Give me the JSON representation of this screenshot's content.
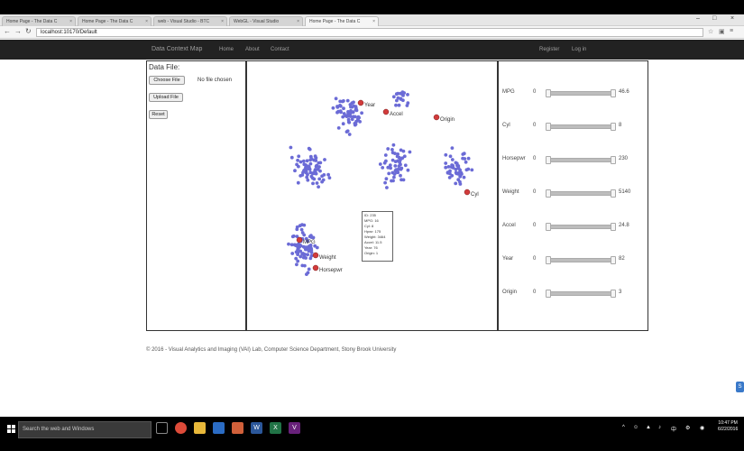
{
  "browser": {
    "tabs": [
      {
        "label": "Home Page - The Data C"
      },
      {
        "label": "Home Page - The Data C"
      },
      {
        "label": "web - Visual Studio - BTC"
      },
      {
        "label": "WebGL - Visual Studio"
      },
      {
        "label": "Home Page - The Data C"
      }
    ],
    "url": "localhost:10170/Default"
  },
  "app": {
    "brand": "Data Context Map",
    "nav_left": [
      "Home",
      "About",
      "Contact"
    ],
    "nav_right": [
      "Register",
      "Log in"
    ]
  },
  "left_panel": {
    "label": "Data File:",
    "choose_file": "Choose File",
    "no_file": "No file chosen",
    "upload_file": "Upload File",
    "reset": "Reset"
  },
  "map": {
    "point_color": "#6b6bd6",
    "attribute_color": "#d23b3b",
    "attribute_labels": [
      {
        "name": "Year"
      },
      {
        "name": "Accel"
      },
      {
        "name": "Origin"
      },
      {
        "name": "Cyl"
      },
      {
        "name": "Weight"
      },
      {
        "name": "Horsepwr"
      },
      {
        "name": "MPG"
      }
    ],
    "tooltip": [
      "ID: 235",
      "MPG: 16",
      "Cyl: 8",
      "Hpwr: 175",
      "Weight: 3464",
      "Accel: 11.5",
      "Year: 76",
      "Origin: 1"
    ]
  },
  "sliders": [
    {
      "label": "MPG",
      "min": "0",
      "max": "46.6"
    },
    {
      "label": "Cyl",
      "min": "0",
      "max": "8"
    },
    {
      "label": "Horsepwr",
      "min": "0",
      "max": "230"
    },
    {
      "label": "Weight",
      "min": "0",
      "max": "5140"
    },
    {
      "label": "Accel",
      "min": "0",
      "max": "24.8"
    },
    {
      "label": "Year",
      "min": "0",
      "max": "82"
    },
    {
      "label": "Origin",
      "min": "0",
      "max": "3"
    }
  ],
  "footer": {
    "text": "© 2016 - Visual Analytics and Imaging (VAI) Lab, Computer Science Department, Stony Brook University"
  },
  "taskbar": {
    "search_placeholder": "Search the web and Windows",
    "clock_time": "10:47 PM",
    "clock_date": "6/22/2016"
  }
}
